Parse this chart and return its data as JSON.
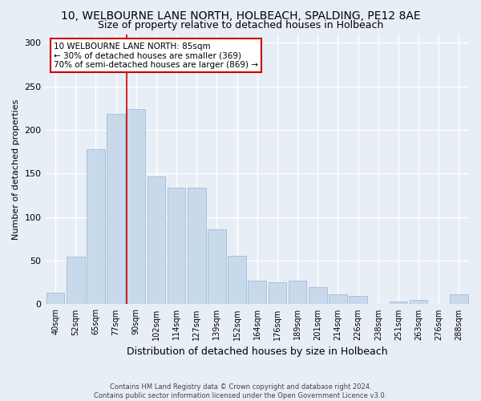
{
  "title": "10, WELBOURNE LANE NORTH, HOLBEACH, SPALDING, PE12 8AE",
  "subtitle": "Size of property relative to detached houses in Holbeach",
  "xlabel": "Distribution of detached houses by size in Holbeach",
  "ylabel": "Number of detached properties",
  "categories": [
    "40sqm",
    "52sqm",
    "65sqm",
    "77sqm",
    "90sqm",
    "102sqm",
    "114sqm",
    "127sqm",
    "139sqm",
    "152sqm",
    "164sqm",
    "176sqm",
    "189sqm",
    "201sqm",
    "214sqm",
    "226sqm",
    "238sqm",
    "251sqm",
    "263sqm",
    "276sqm",
    "288sqm"
  ],
  "values": [
    13,
    55,
    178,
    218,
    224,
    147,
    134,
    134,
    86,
    56,
    27,
    25,
    27,
    20,
    11,
    10,
    0,
    3,
    5,
    0,
    11
  ],
  "bar_color": "#c8d9ec",
  "bar_edge_color": "#a0bcd8",
  "annotation_text": "10 WELBOURNE LANE NORTH: 85sqm\n← 30% of detached houses are smaller (369)\n70% of semi-detached houses are larger (869) →",
  "annotation_box_color": "#ffffff",
  "annotation_box_edge_color": "#cc0000",
  "vline_color": "#cc0000",
  "vline_x_index": 4,
  "footnote": "Contains HM Land Registry data © Crown copyright and database right 2024.\nContains public sector information licensed under the Open Government Licence v3.0.",
  "ylim": [
    0,
    310
  ],
  "background_color": "#e8eef5",
  "plot_background": "#e8eef5",
  "grid_color": "#ffffff",
  "title_fontsize": 10,
  "subtitle_fontsize": 9,
  "xlabel_fontsize": 9,
  "ylabel_fontsize": 8,
  "tick_fontsize": 7,
  "footnote_fontsize": 6,
  "annotation_fontsize": 7.5
}
